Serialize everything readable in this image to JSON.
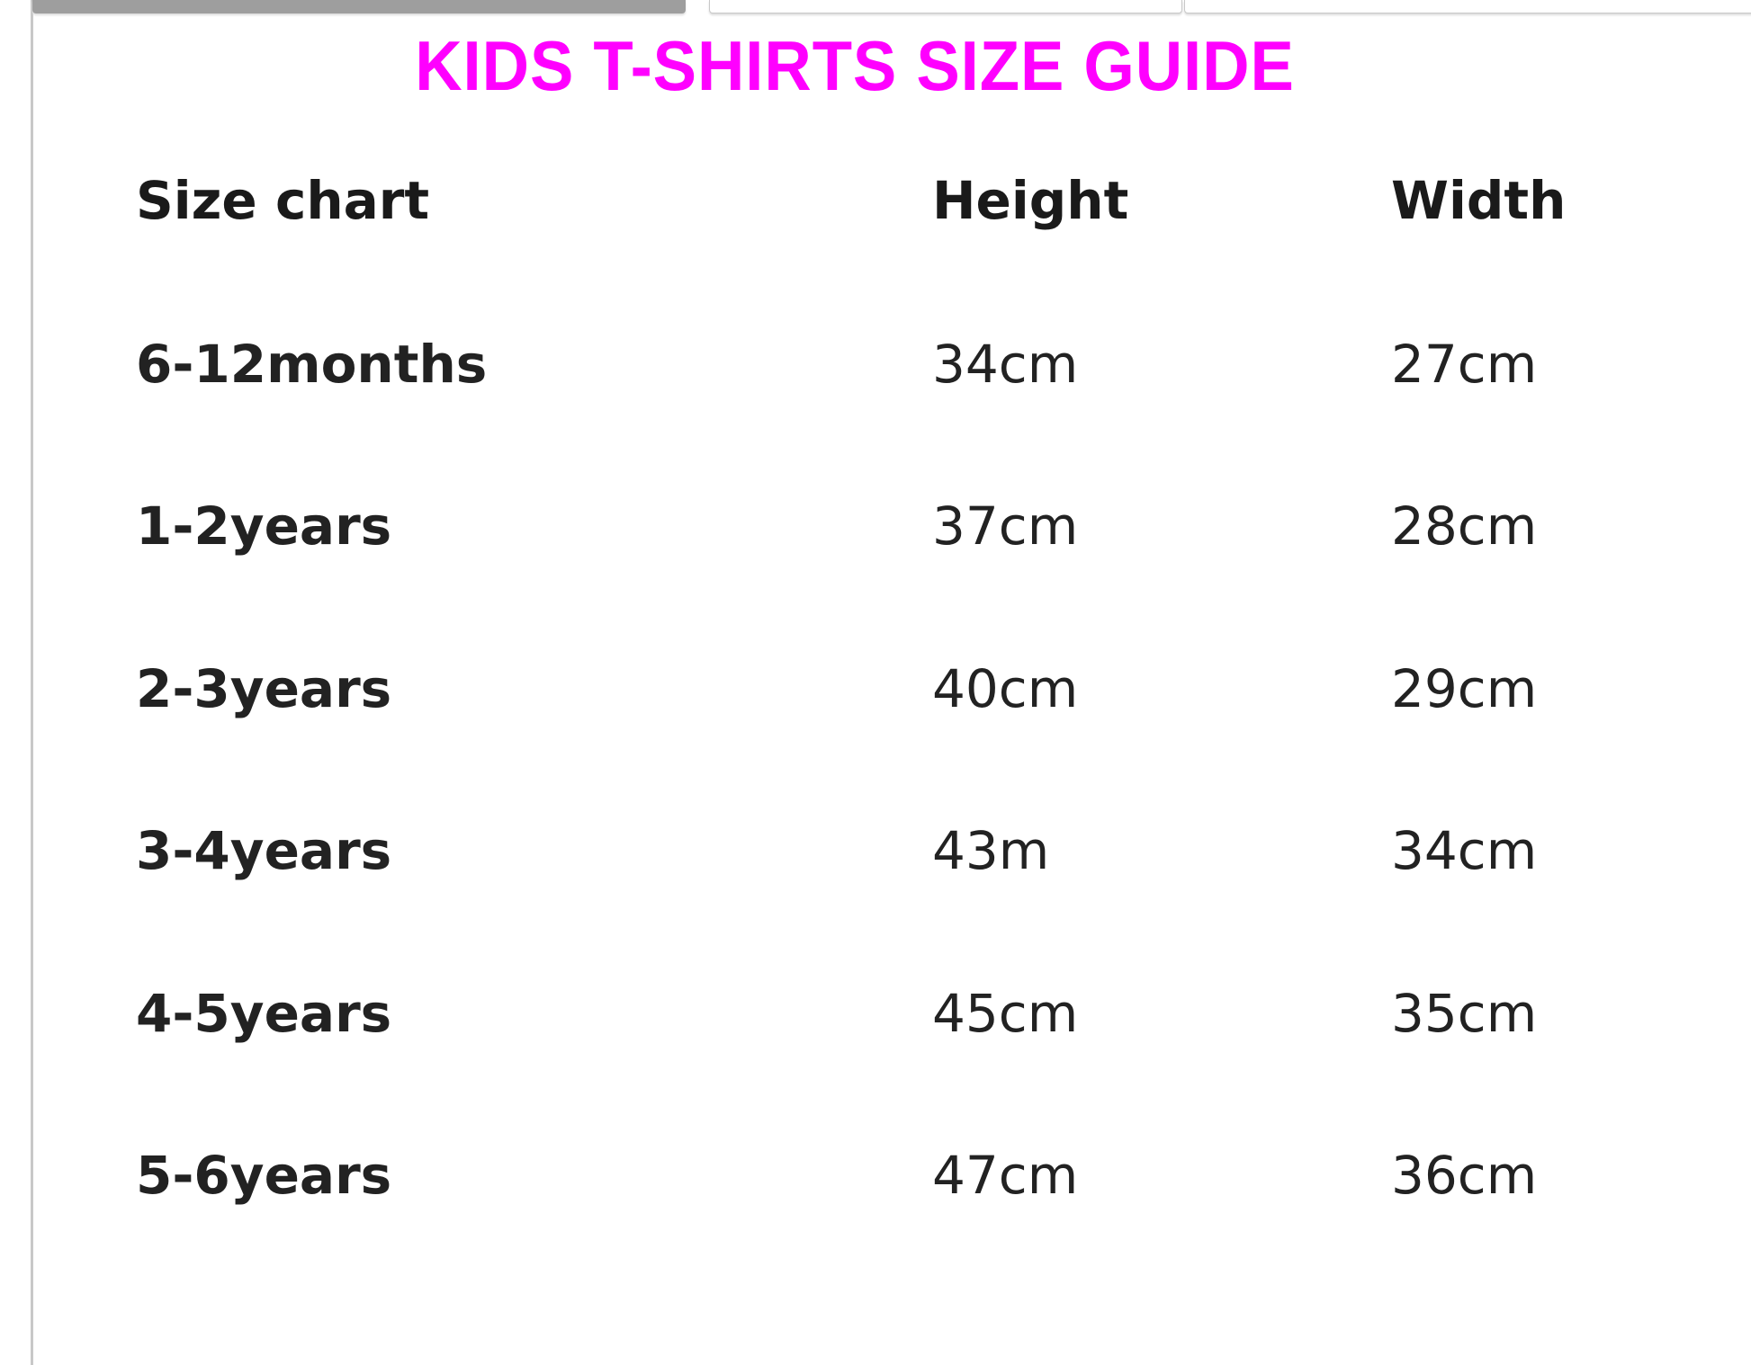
{
  "title": "KIDS T-SHIRTS SIZE GUIDE",
  "title_color": "#ff00ff",
  "tabs": [
    {
      "active": true
    },
    {
      "active": false
    },
    {
      "active": false
    }
  ],
  "table": {
    "headers": [
      "Size chart",
      "Height",
      "Width"
    ],
    "rows": [
      [
        "6-12months",
        "34cm",
        "27cm"
      ],
      [
        "1-2years",
        "37cm",
        "28cm"
      ],
      [
        "2-3years",
        "40cm",
        "29cm"
      ],
      [
        "3-4years",
        "43m",
        "34cm"
      ],
      [
        "4-5years",
        "45cm",
        "35cm"
      ],
      [
        "5-6years",
        "47cm",
        "36cm"
      ]
    ]
  }
}
